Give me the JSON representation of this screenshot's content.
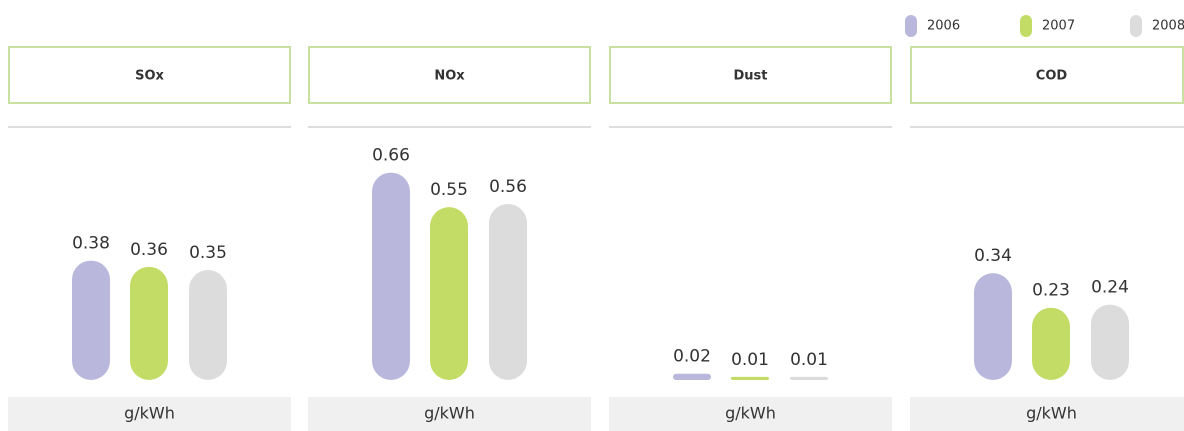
{
  "chart_data": {
    "type": "bar",
    "categories": [
      "SOx",
      "NOx",
      "Dust",
      "COD"
    ],
    "unit": "g/kWh",
    "ylim": [
      0,
      0.7
    ],
    "series": [
      {
        "name": "2006",
        "color": "#b9b8dc",
        "values": [
          0.38,
          0.66,
          0.02,
          0.34
        ]
      },
      {
        "name": "2007",
        "color": "#c2dc66",
        "values": [
          0.36,
          0.55,
          0.01,
          0.23
        ]
      },
      {
        "name": "2008",
        "color": "#dcdcdc",
        "values": [
          0.35,
          0.56,
          0.01,
          0.24
        ]
      }
    ]
  }
}
